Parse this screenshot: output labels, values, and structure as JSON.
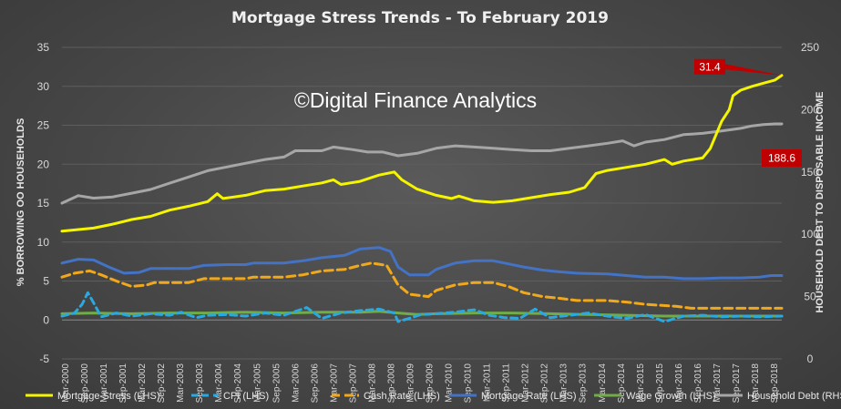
{
  "chart_data": {
    "type": "line",
    "title": "Mortgage Stress Trends - To February 2019",
    "watermark": "©Digital Finance Analytics",
    "ylabel": "% BORROWING OO HOUSEHOLDS",
    "y2label": "HOUSEHOLD DEBT TO DISPOSABLE INCOME",
    "ylim": [
      -5,
      35
    ],
    "y2lim": [
      0,
      250
    ],
    "yticks": [
      "-5",
      "0",
      "5",
      "10",
      "15",
      "20",
      "25",
      "30",
      "35"
    ],
    "y2ticks": [
      "0",
      "50",
      "100",
      "150",
      "200",
      "250"
    ],
    "xticks": [
      "Mar-2000",
      "Sep-2000",
      "Mar-2001",
      "Sep-2001",
      "Mar-2002",
      "Sep-2002",
      "Mar-2003",
      "Sep-2003",
      "Mar-2004",
      "Sep-2004",
      "Mar-2005",
      "Sep-2005",
      "Mar-2006",
      "Sep-2006",
      "Mar-2007",
      "Sep-2007",
      "Mar-2008",
      "Sep-2008",
      "Mar-2009",
      "Sep-2009",
      "Mar-2010",
      "Sep-2010",
      "Mar-2011",
      "Sep-2011",
      "Mar-2012",
      "Sep-2012",
      "Mar-2013",
      "Sep-2013",
      "Mar-2014",
      "Sep-2014",
      "Mar-2015",
      "Sep-2015",
      "Mar-2016",
      "Sep-2016",
      "Mar-2017",
      "Sep-2017",
      "Mar-2018",
      "Sep-2018"
    ],
    "x_start": 2000.17,
    "x_end": 2019.08,
    "annotations": [
      {
        "series": "Mortgage Stress (LHS)",
        "text": "31.4"
      },
      {
        "series": "Household Debt (RHS)",
        "text": "188.6"
      }
    ],
    "series": [
      {
        "name": "Mortgage Stress (LHS)",
        "axis": "left",
        "color": "#f5f500",
        "dash": "none",
        "points": [
          [
            2000.17,
            11.4
          ],
          [
            2001.0,
            11.8
          ],
          [
            2001.5,
            12.3
          ],
          [
            2002.0,
            12.9
          ],
          [
            2002.5,
            13.3
          ],
          [
            2003.0,
            14.1
          ],
          [
            2003.5,
            14.6
          ],
          [
            2004.0,
            15.2
          ],
          [
            2004.25,
            16.2
          ],
          [
            2004.4,
            15.6
          ],
          [
            2005.0,
            16.0
          ],
          [
            2005.5,
            16.6
          ],
          [
            2006.0,
            16.8
          ],
          [
            2006.5,
            17.2
          ],
          [
            2007.0,
            17.6
          ],
          [
            2007.3,
            18.0
          ],
          [
            2007.5,
            17.4
          ],
          [
            2008.0,
            17.8
          ],
          [
            2008.5,
            18.6
          ],
          [
            2008.9,
            19.0
          ],
          [
            2009.1,
            18.0
          ],
          [
            2009.5,
            16.8
          ],
          [
            2010.0,
            16.0
          ],
          [
            2010.4,
            15.6
          ],
          [
            2010.6,
            15.9
          ],
          [
            2011.0,
            15.3
          ],
          [
            2011.5,
            15.1
          ],
          [
            2012.0,
            15.3
          ],
          [
            2012.5,
            15.7
          ],
          [
            2013.0,
            16.1
          ],
          [
            2013.5,
            16.4
          ],
          [
            2013.9,
            17.0
          ],
          [
            2014.2,
            18.8
          ],
          [
            2014.5,
            19.2
          ],
          [
            2015.0,
            19.6
          ],
          [
            2015.5,
            20.0
          ],
          [
            2016.0,
            20.6
          ],
          [
            2016.2,
            20.0
          ],
          [
            2016.5,
            20.4
          ],
          [
            2017.0,
            20.8
          ],
          [
            2017.2,
            22.0
          ],
          [
            2017.5,
            25.5
          ],
          [
            2017.7,
            27.0
          ],
          [
            2017.8,
            28.8
          ],
          [
            2018.0,
            29.5
          ],
          [
            2018.3,
            30.0
          ],
          [
            2018.6,
            30.4
          ],
          [
            2018.9,
            30.8
          ],
          [
            2019.08,
            31.4
          ]
        ]
      },
      {
        "name": "CPI (LHS)",
        "axis": "left",
        "color": "#29a9e0",
        "dash": "7,5",
        "points": [
          [
            2000.17,
            0.5
          ],
          [
            2000.5,
            0.9
          ],
          [
            2000.7,
            2.0
          ],
          [
            2000.85,
            3.5
          ],
          [
            2001.0,
            2.2
          ],
          [
            2001.2,
            0.4
          ],
          [
            2001.6,
            0.9
          ],
          [
            2002.0,
            0.5
          ],
          [
            2002.5,
            0.8
          ],
          [
            2003.0,
            0.6
          ],
          [
            2003.3,
            1.0
          ],
          [
            2003.7,
            0.3
          ],
          [
            2004.0,
            0.6
          ],
          [
            2004.5,
            0.7
          ],
          [
            2005.0,
            0.5
          ],
          [
            2005.5,
            0.9
          ],
          [
            2006.0,
            0.6
          ],
          [
            2006.6,
            1.6
          ],
          [
            2007.0,
            0.2
          ],
          [
            2007.5,
            0.9
          ],
          [
            2008.0,
            1.2
          ],
          [
            2008.5,
            1.4
          ],
          [
            2008.9,
            0.9
          ],
          [
            2009.0,
            -0.2
          ],
          [
            2009.3,
            0.2
          ],
          [
            2009.6,
            0.7
          ],
          [
            2010.0,
            0.8
          ],
          [
            2010.5,
            1.0
          ],
          [
            2011.0,
            1.3
          ],
          [
            2011.4,
            0.6
          ],
          [
            2011.8,
            0.3
          ],
          [
            2012.2,
            0.2
          ],
          [
            2012.6,
            1.4
          ],
          [
            2013.0,
            0.3
          ],
          [
            2013.5,
            0.6
          ],
          [
            2014.0,
            0.9
          ],
          [
            2014.5,
            0.5
          ],
          [
            2015.0,
            0.2
          ],
          [
            2015.5,
            0.7
          ],
          [
            2016.0,
            -0.2
          ],
          [
            2016.5,
            0.5
          ],
          [
            2017.0,
            0.6
          ],
          [
            2017.5,
            0.4
          ],
          [
            2018.0,
            0.5
          ],
          [
            2018.5,
            0.4
          ],
          [
            2019.08,
            0.5
          ]
        ]
      },
      {
        "name": "Cash Rate (LHS)",
        "axis": "left",
        "color": "#f0a81c",
        "dash": "9,5",
        "points": [
          [
            2000.17,
            5.5
          ],
          [
            2000.5,
            6.0
          ],
          [
            2000.9,
            6.3
          ],
          [
            2001.2,
            5.8
          ],
          [
            2001.6,
            5.0
          ],
          [
            2002.0,
            4.3
          ],
          [
            2002.4,
            4.5
          ],
          [
            2002.6,
            4.8
          ],
          [
            2003.0,
            4.8
          ],
          [
            2003.5,
            4.8
          ],
          [
            2003.9,
            5.3
          ],
          [
            2004.5,
            5.3
          ],
          [
            2005.0,
            5.3
          ],
          [
            2005.2,
            5.5
          ],
          [
            2006.0,
            5.5
          ],
          [
            2006.5,
            5.8
          ],
          [
            2007.0,
            6.3
          ],
          [
            2007.6,
            6.5
          ],
          [
            2008.0,
            7.0
          ],
          [
            2008.3,
            7.3
          ],
          [
            2008.7,
            7.0
          ],
          [
            2009.0,
            4.5
          ],
          [
            2009.3,
            3.3
          ],
          [
            2009.8,
            3.0
          ],
          [
            2010.0,
            3.8
          ],
          [
            2010.5,
            4.5
          ],
          [
            2011.0,
            4.8
          ],
          [
            2011.5,
            4.8
          ],
          [
            2011.9,
            4.3
          ],
          [
            2012.3,
            3.5
          ],
          [
            2012.8,
            3.0
          ],
          [
            2013.2,
            2.8
          ],
          [
            2013.7,
            2.5
          ],
          [
            2014.5,
            2.5
          ],
          [
            2015.0,
            2.3
          ],
          [
            2015.5,
            2.0
          ],
          [
            2016.3,
            1.75
          ],
          [
            2016.7,
            1.5
          ],
          [
            2019.08,
            1.5
          ]
        ]
      },
      {
        "name": "Mortgage Rate (LHS)",
        "axis": "left",
        "color": "#4472c4",
        "dash": "none",
        "points": [
          [
            2000.17,
            7.3
          ],
          [
            2000.6,
            7.8
          ],
          [
            2001.0,
            7.7
          ],
          [
            2001.4,
            6.8
          ],
          [
            2001.8,
            6.0
          ],
          [
            2002.2,
            6.1
          ],
          [
            2002.5,
            6.6
          ],
          [
            2003.0,
            6.6
          ],
          [
            2003.5,
            6.6
          ],
          [
            2003.9,
            7.0
          ],
          [
            2004.5,
            7.1
          ],
          [
            2005.0,
            7.1
          ],
          [
            2005.2,
            7.3
          ],
          [
            2006.0,
            7.3
          ],
          [
            2006.5,
            7.6
          ],
          [
            2007.0,
            8.0
          ],
          [
            2007.6,
            8.3
          ],
          [
            2008.0,
            9.1
          ],
          [
            2008.5,
            9.3
          ],
          [
            2008.8,
            8.8
          ],
          [
            2009.0,
            6.8
          ],
          [
            2009.3,
            5.8
          ],
          [
            2009.8,
            5.8
          ],
          [
            2010.0,
            6.5
          ],
          [
            2010.5,
            7.3
          ],
          [
            2011.0,
            7.6
          ],
          [
            2011.5,
            7.6
          ],
          [
            2011.9,
            7.2
          ],
          [
            2012.3,
            6.8
          ],
          [
            2012.8,
            6.4
          ],
          [
            2013.2,
            6.2
          ],
          [
            2013.7,
            6.0
          ],
          [
            2014.5,
            5.9
          ],
          [
            2015.0,
            5.7
          ],
          [
            2015.5,
            5.5
          ],
          [
            2016.0,
            5.5
          ],
          [
            2016.5,
            5.3
          ],
          [
            2017.0,
            5.3
          ],
          [
            2017.5,
            5.4
          ],
          [
            2018.0,
            5.4
          ],
          [
            2018.5,
            5.5
          ],
          [
            2018.8,
            5.7
          ],
          [
            2019.08,
            5.7
          ]
        ]
      },
      {
        "name": "Wage Growth (LHS)",
        "axis": "left",
        "color": "#70ad47",
        "dash": "none",
        "points": [
          [
            2000.17,
            0.8
          ],
          [
            2001.0,
            0.9
          ],
          [
            2002.0,
            0.8
          ],
          [
            2003.0,
            0.9
          ],
          [
            2004.0,
            0.9
          ],
          [
            2005.0,
            1.0
          ],
          [
            2006.0,
            0.9
          ],
          [
            2007.0,
            1.0
          ],
          [
            2008.0,
            1.0
          ],
          [
            2008.5,
            1.1
          ],
          [
            2009.0,
            0.9
          ],
          [
            2009.5,
            0.7
          ],
          [
            2010.0,
            0.8
          ],
          [
            2011.0,
            0.9
          ],
          [
            2012.0,
            0.9
          ],
          [
            2013.0,
            0.8
          ],
          [
            2014.0,
            0.7
          ],
          [
            2015.0,
            0.6
          ],
          [
            2016.0,
            0.5
          ],
          [
            2017.0,
            0.5
          ],
          [
            2018.0,
            0.5
          ],
          [
            2019.08,
            0.5
          ]
        ]
      },
      {
        "name": "Household Debt (RHS)",
        "axis": "right",
        "color": "#a6a6a6",
        "dash": "none",
        "points": [
          [
            2000.17,
            125
          ],
          [
            2000.6,
            131
          ],
          [
            2001.0,
            129
          ],
          [
            2001.5,
            130
          ],
          [
            2002.0,
            133
          ],
          [
            2002.5,
            136
          ],
          [
            2003.0,
            141
          ],
          [
            2003.5,
            146
          ],
          [
            2004.0,
            151
          ],
          [
            2004.5,
            154
          ],
          [
            2005.0,
            157
          ],
          [
            2005.5,
            160
          ],
          [
            2006.0,
            162
          ],
          [
            2006.3,
            167
          ],
          [
            2007.0,
            167
          ],
          [
            2007.3,
            170
          ],
          [
            2007.8,
            168
          ],
          [
            2008.2,
            166
          ],
          [
            2008.6,
            166
          ],
          [
            2009.0,
            163
          ],
          [
            2009.5,
            165
          ],
          [
            2010.0,
            169
          ],
          [
            2010.5,
            171
          ],
          [
            2011.0,
            170
          ],
          [
            2011.5,
            169
          ],
          [
            2012.0,
            168
          ],
          [
            2012.5,
            167
          ],
          [
            2013.0,
            167
          ],
          [
            2013.5,
            169
          ],
          [
            2014.0,
            171
          ],
          [
            2014.5,
            173
          ],
          [
            2014.9,
            175
          ],
          [
            2015.2,
            171
          ],
          [
            2015.5,
            174
          ],
          [
            2016.0,
            176
          ],
          [
            2016.5,
            180
          ],
          [
            2017.0,
            181
          ],
          [
            2017.5,
            183
          ],
          [
            2018.0,
            185
          ],
          [
            2018.3,
            187
          ],
          [
            2018.6,
            188
          ],
          [
            2018.9,
            188.6
          ],
          [
            2019.08,
            188.6
          ]
        ]
      }
    ]
  }
}
